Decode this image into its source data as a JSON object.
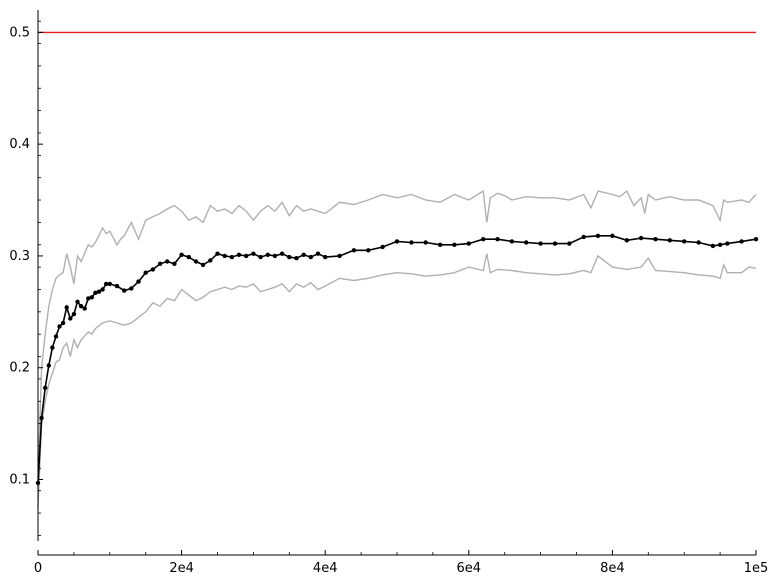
{
  "chart_data": {
    "type": "line",
    "title": "",
    "xlabel": "",
    "ylabel": "",
    "xlim": [
      0,
      100000
    ],
    "ylim": [
      0.045,
      0.52
    ],
    "grid": false,
    "x_ticks": [
      {
        "value": 0,
        "label": "0"
      },
      {
        "value": 20000,
        "label": "2e4"
      },
      {
        "value": 40000,
        "label": "4e4"
      },
      {
        "value": 60000,
        "label": "6e4"
      },
      {
        "value": 80000,
        "label": "8e4"
      },
      {
        "value": 100000,
        "label": "1e5"
      }
    ],
    "y_ticks": [
      {
        "value": 0.1,
        "label": "0.1"
      },
      {
        "value": 0.2,
        "label": "0.2"
      },
      {
        "value": 0.3,
        "label": "0.3"
      },
      {
        "value": 0.4,
        "label": "0.4"
      },
      {
        "value": 0.5,
        "label": "0.5"
      }
    ],
    "series": [
      {
        "role": "reference",
        "color": "#e41a1c",
        "style": "line",
        "x": [
          0,
          100000
        ],
        "y": [
          0.5,
          0.5
        ]
      },
      {
        "role": "upper-band",
        "color": "#b0b0b0",
        "style": "line",
        "x": [
          0,
          500,
          1000,
          1500,
          2000,
          2500,
          3000,
          3500,
          4000,
          4500,
          5000,
          5500,
          6000,
          7000,
          7500,
          8000,
          9000,
          9500,
          10000,
          11000,
          11500,
          12000,
          13000,
          14000,
          15000,
          16000,
          17000,
          18000,
          19000,
          20000,
          21000,
          22000,
          23000,
          24000,
          25000,
          26000,
          27000,
          28000,
          29000,
          30000,
          31000,
          32000,
          33000,
          34000,
          35000,
          36000,
          37000,
          38000,
          39000,
          40000,
          42000,
          44000,
          46000,
          48000,
          50000,
          52000,
          54000,
          56000,
          58000,
          60000,
          62000,
          62500,
          63000,
          64000,
          65000,
          66000,
          68000,
          70000,
          72000,
          74000,
          76000,
          77000,
          78000,
          80000,
          81000,
          82000,
          83000,
          84000,
          84500,
          85000,
          86000,
          88000,
          90000,
          92000,
          94000,
          95000,
          95500,
          96000,
          98000,
          99000,
          100000
        ],
        "y": [
          0.1,
          0.2,
          0.23,
          0.255,
          0.27,
          0.28,
          0.283,
          0.285,
          0.302,
          0.29,
          0.275,
          0.3,
          0.295,
          0.31,
          0.308,
          0.312,
          0.325,
          0.32,
          0.322,
          0.31,
          0.315,
          0.318,
          0.33,
          0.315,
          0.332,
          0.335,
          0.338,
          0.342,
          0.345,
          0.34,
          0.332,
          0.335,
          0.33,
          0.345,
          0.34,
          0.342,
          0.338,
          0.345,
          0.34,
          0.332,
          0.34,
          0.345,
          0.34,
          0.348,
          0.336,
          0.345,
          0.34,
          0.342,
          0.34,
          0.338,
          0.348,
          0.346,
          0.35,
          0.355,
          0.352,
          0.355,
          0.35,
          0.348,
          0.355,
          0.35,
          0.358,
          0.33,
          0.352,
          0.356,
          0.354,
          0.35,
          0.353,
          0.352,
          0.352,
          0.35,
          0.355,
          0.343,
          0.358,
          0.355,
          0.353,
          0.358,
          0.345,
          0.352,
          0.338,
          0.355,
          0.35,
          0.353,
          0.35,
          0.35,
          0.345,
          0.332,
          0.35,
          0.348,
          0.35,
          0.348,
          0.355
        ]
      },
      {
        "role": "lower-band",
        "color": "#b0b0b0",
        "style": "line",
        "x": [
          0,
          500,
          1000,
          1500,
          2000,
          2500,
          3000,
          3500,
          4000,
          4500,
          5000,
          5500,
          6000,
          7000,
          7500,
          8000,
          9000,
          10000,
          11000,
          12000,
          13000,
          14000,
          15000,
          16000,
          17000,
          18000,
          19000,
          20000,
          21000,
          22000,
          23000,
          24000,
          25000,
          26000,
          27000,
          28000,
          29000,
          30000,
          31000,
          32000,
          33000,
          34000,
          35000,
          36000,
          37000,
          38000,
          39000,
          40000,
          42000,
          44000,
          46000,
          48000,
          50000,
          52000,
          54000,
          56000,
          58000,
          60000,
          62000,
          62500,
          63000,
          64000,
          66000,
          68000,
          70000,
          72000,
          74000,
          76000,
          77000,
          78000,
          80000,
          82000,
          84000,
          85000,
          86000,
          88000,
          90000,
          92000,
          94000,
          95000,
          95500,
          96000,
          98000,
          99000,
          100000
        ],
        "y": [
          0.075,
          0.15,
          0.17,
          0.185,
          0.195,
          0.205,
          0.207,
          0.218,
          0.222,
          0.21,
          0.225,
          0.218,
          0.225,
          0.232,
          0.23,
          0.235,
          0.24,
          0.242,
          0.24,
          0.238,
          0.24,
          0.245,
          0.25,
          0.258,
          0.255,
          0.262,
          0.26,
          0.27,
          0.265,
          0.26,
          0.263,
          0.268,
          0.27,
          0.272,
          0.27,
          0.273,
          0.272,
          0.275,
          0.268,
          0.27,
          0.272,
          0.275,
          0.268,
          0.275,
          0.272,
          0.276,
          0.27,
          0.273,
          0.28,
          0.278,
          0.28,
          0.283,
          0.285,
          0.284,
          0.282,
          0.283,
          0.285,
          0.29,
          0.287,
          0.302,
          0.285,
          0.288,
          0.287,
          0.285,
          0.284,
          0.283,
          0.284,
          0.287,
          0.285,
          0.3,
          0.29,
          0.288,
          0.29,
          0.298,
          0.287,
          0.286,
          0.285,
          0.283,
          0.282,
          0.28,
          0.292,
          0.285,
          0.285,
          0.29,
          0.289
        ]
      },
      {
        "role": "mean",
        "color": "#000000",
        "style": "line-markers",
        "x": [
          0,
          500,
          1000,
          1500,
          2000,
          2500,
          3000,
          3500,
          4000,
          4500,
          5000,
          5500,
          6000,
          6500,
          7000,
          7500,
          8000,
          8500,
          9000,
          9500,
          10000,
          11000,
          12000,
          13000,
          14000,
          15000,
          16000,
          17000,
          18000,
          19000,
          20000,
          21000,
          22000,
          23000,
          24000,
          25000,
          26000,
          27000,
          28000,
          29000,
          30000,
          31000,
          32000,
          33000,
          34000,
          35000,
          36000,
          37000,
          38000,
          39000,
          40000,
          42000,
          44000,
          46000,
          48000,
          50000,
          52000,
          54000,
          56000,
          58000,
          60000,
          62000,
          64000,
          66000,
          68000,
          70000,
          72000,
          74000,
          76000,
          78000,
          80000,
          82000,
          84000,
          86000,
          88000,
          90000,
          92000,
          94000,
          95000,
          96000,
          98000,
          100000
        ],
        "y": [
          0.097,
          0.155,
          0.182,
          0.202,
          0.218,
          0.228,
          0.237,
          0.24,
          0.254,
          0.244,
          0.248,
          0.259,
          0.255,
          0.253,
          0.262,
          0.263,
          0.267,
          0.268,
          0.27,
          0.275,
          0.275,
          0.273,
          0.269,
          0.271,
          0.277,
          0.285,
          0.288,
          0.293,
          0.295,
          0.293,
          0.301,
          0.299,
          0.295,
          0.292,
          0.296,
          0.302,
          0.3,
          0.299,
          0.301,
          0.3,
          0.302,
          0.299,
          0.301,
          0.3,
          0.302,
          0.299,
          0.298,
          0.301,
          0.299,
          0.302,
          0.299,
          0.3,
          0.305,
          0.305,
          0.308,
          0.313,
          0.312,
          0.312,
          0.31,
          0.31,
          0.311,
          0.315,
          0.315,
          0.313,
          0.312,
          0.311,
          0.311,
          0.311,
          0.317,
          0.318,
          0.318,
          0.314,
          0.316,
          0.315,
          0.314,
          0.313,
          0.312,
          0.309,
          0.31,
          0.311,
          0.313,
          0.315
        ]
      }
    ]
  }
}
